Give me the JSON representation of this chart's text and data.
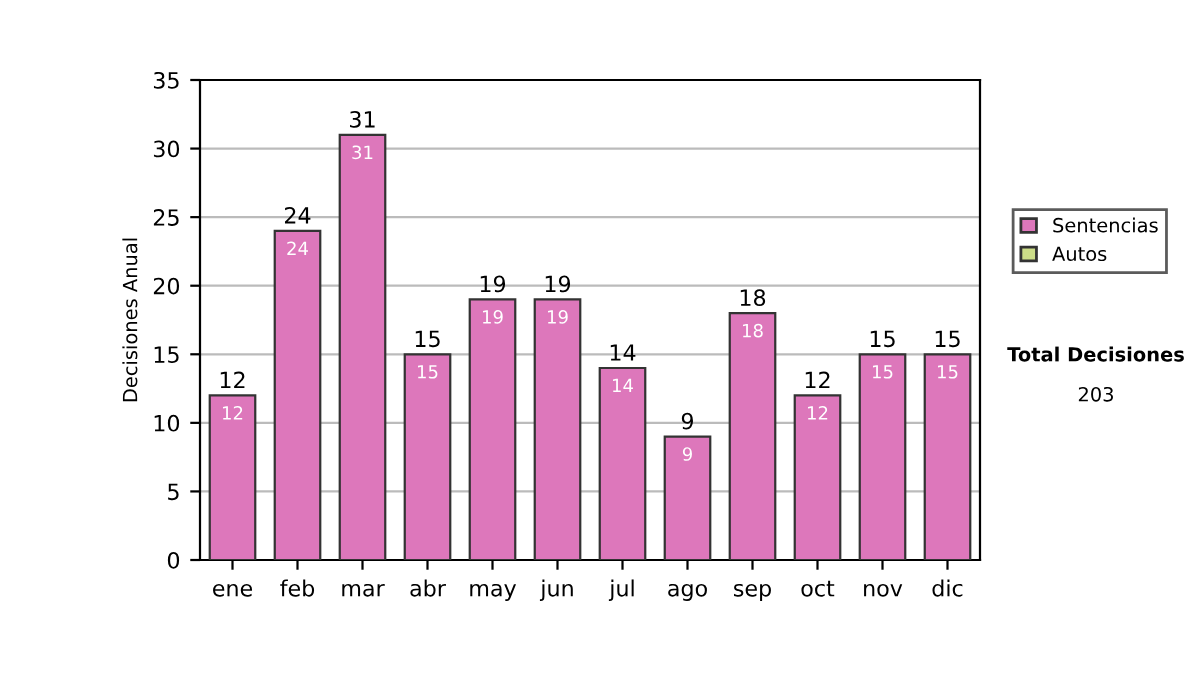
{
  "chart_data": {
    "type": "bar",
    "ylabel": "Decisiones Anual",
    "categories": [
      "ene",
      "feb",
      "mar",
      "abr",
      "may",
      "jun",
      "jul",
      "ago",
      "sep",
      "oct",
      "nov",
      "dic"
    ],
    "series": [
      {
        "name": "Sentencias",
        "color": "#dd77bb",
        "values": [
          12,
          24,
          31,
          15,
          19,
          19,
          14,
          9,
          18,
          12,
          15,
          15
        ]
      },
      {
        "name": "Autos",
        "color": "#ccdd88",
        "values": [
          null,
          null,
          null,
          null,
          null,
          null,
          null,
          null,
          null,
          null,
          null,
          null
        ]
      }
    ],
    "stacked": true,
    "totals": [
      "12",
      "24",
      "31",
      "15",
      "19",
      "19",
      "14",
      "9",
      "18",
      "12",
      "15",
      "15"
    ],
    "ylim": [
      0,
      35
    ],
    "yticks": [
      0,
      5,
      10,
      15,
      20,
      25,
      30,
      35
    ],
    "grid": "y",
    "legend": "right",
    "data_labels": true,
    "annotations": [
      "Total Decisiones",
      "203"
    ]
  }
}
